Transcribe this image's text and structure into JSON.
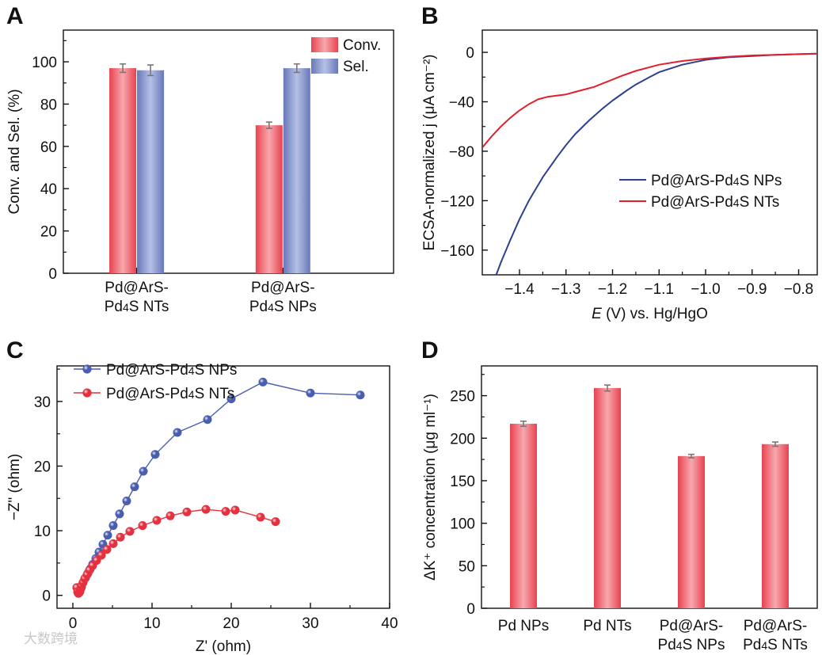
{
  "panels": {
    "a": {
      "letter": "A",
      "chart_data": {
        "type": "bar",
        "categories": [
          [
            "Pd@ArS-",
            "Pd4S NTs"
          ],
          [
            "Pd@ArS-",
            "Pd4S NPs"
          ]
        ],
        "series": [
          {
            "name": "Conv.",
            "values": [
              97,
              70
            ],
            "errors": [
              2,
              1.5
            ],
            "color": "#e8424f"
          },
          {
            "name": "Sel.",
            "values": [
              96,
              97
            ],
            "errors": [
              2.5,
              2
            ],
            "color": "#6878b8"
          }
        ],
        "xlabel": "",
        "ylabel": "Conv. and Sel. (%)",
        "ylim": [
          0,
          115
        ],
        "yticks": [
          0,
          20,
          40,
          60,
          80,
          100
        ],
        "legend": "top-right",
        "grid": false
      }
    },
    "b": {
      "letter": "B",
      "chart_data": {
        "type": "line",
        "xlabel_italic": "E",
        "xlabel_rest": " (V) vs. Hg/HgO",
        "ylabel": "ECSA-normalized j (μA cm⁻²)",
        "xlim": [
          -1.48,
          -0.76
        ],
        "ylim": [
          -180,
          18
        ],
        "xticks": [
          -1.4,
          -1.3,
          -1.2,
          -1.1,
          -1.0,
          -0.9,
          -0.8
        ],
        "xtick_labels": [
          "−1.4",
          "−1.3",
          "−1.2",
          "−1.1",
          "−1.0",
          "−0.9",
          "−0.8"
        ],
        "yticks": [
          0,
          -40,
          -80,
          -120,
          -160
        ],
        "ytick_labels": [
          "0",
          "−40",
          "−80",
          "−120",
          "−160"
        ],
        "legend": "lower-right",
        "grid": false,
        "series": [
          {
            "name": "Pd@ArS-Pd4S NPs",
            "color": "#2f3f8f",
            "x": [
              -1.45,
              -1.44,
              -1.42,
              -1.4,
              -1.38,
              -1.35,
              -1.32,
              -1.3,
              -1.28,
              -1.25,
              -1.22,
              -1.2,
              -1.17,
              -1.15,
              -1.12,
              -1.1,
              -1.05,
              -1.0,
              -0.95,
              -0.9,
              -0.85,
              -0.8,
              -0.76
            ],
            "y": [
              -180,
              -170,
              -152,
              -135,
              -120,
              -101,
              -85,
              -75,
              -66,
              -55,
              -45,
              -39,
              -31,
              -26,
              -20,
              -16,
              -10,
              -6,
              -4,
              -3,
              -2,
              -1.5,
              -1
            ]
          },
          {
            "name": "Pd@ArS-Pd4S NTs",
            "color": "#e0202c",
            "x": [
              -1.48,
              -1.46,
              -1.44,
              -1.42,
              -1.4,
              -1.38,
              -1.36,
              -1.34,
              -1.32,
              -1.3,
              -1.28,
              -1.26,
              -1.24,
              -1.22,
              -1.2,
              -1.18,
              -1.15,
              -1.12,
              -1.1,
              -1.05,
              -1.0,
              -0.95,
              -0.9,
              -0.85,
              -0.8,
              -0.76
            ],
            "y": [
              -77,
              -68,
              -60,
              -53,
              -47,
              -42,
              -38,
              -36,
              -35,
              -34,
              -32,
              -30,
              -28,
              -25,
              -22,
              -19,
              -15,
              -12,
              -10,
              -7,
              -5,
              -3.5,
              -2.5,
              -2,
              -1.5,
              -1
            ]
          }
        ]
      }
    },
    "c": {
      "letter": "C",
      "chart_data": {
        "type": "scatter",
        "xlabel": "Z' (ohm)",
        "ylabel": "−Z\" (ohm)",
        "xlim": [
          -2,
          40
        ],
        "ylim": [
          -2,
          35.5
        ],
        "xticks": [
          0,
          10,
          20,
          30,
          40
        ],
        "yticks": [
          0,
          10,
          20,
          30
        ],
        "legend": "top-left",
        "grid": false,
        "series": [
          {
            "name": "Pd@ArS-Pd4S NPs",
            "color": "#4a5eb0",
            "x": [
              0.5,
              0.7,
              0.9,
              1.1,
              1.3,
              1.6,
              1.9,
              2.2,
              2.5,
              2.9,
              3.3,
              3.8,
              4.4,
              5.1,
              5.9,
              6.8,
              7.8,
              8.9,
              10.4,
              13.2,
              17.0,
              20.0,
              24.0,
              30.0,
              36.3
            ],
            "y": [
              1.2,
              0.6,
              0.8,
              1.3,
              2.0,
              2.7,
              3.4,
              4.1,
              4.8,
              5.7,
              6.7,
              7.9,
              9.3,
              10.8,
              12.6,
              14.6,
              16.8,
              19.2,
              21.8,
              25.2,
              27.2,
              30.4,
              33.0,
              31.3,
              31.0
            ]
          },
          {
            "name": "Pd@ArS-Pd4S NTs",
            "color": "#e5303f",
            "x": [
              0.5,
              0.6,
              0.7,
              0.8,
              0.9,
              1.0,
              1.1,
              1.3,
              1.5,
              1.8,
              2.1,
              2.5,
              3.0,
              3.6,
              4.3,
              5.1,
              6.0,
              7.2,
              8.8,
              10.6,
              12.3,
              14.4,
              16.8,
              19.3,
              20.5,
              23.7,
              25.6
            ],
            "y": [
              1.2,
              0.5,
              0.3,
              0.4,
              0.6,
              1.0,
              1.5,
              2.0,
              2.6,
              3.2,
              3.9,
              4.6,
              5.4,
              6.2,
              7.1,
              8.0,
              9.0,
              9.9,
              10.8,
              11.6,
              12.3,
              12.9,
              13.3,
              13.0,
              13.2,
              12.1,
              11.4
            ]
          }
        ]
      }
    },
    "d": {
      "letter": "D",
      "chart_data": {
        "type": "bar",
        "categories": [
          [
            "Pd NPs"
          ],
          [
            "Pd NTs"
          ],
          [
            "Pd@ArS-",
            "Pd4S NPs"
          ],
          [
            "Pd@ArS-",
            "Pd4S NTs"
          ]
        ],
        "values": [
          217,
          259,
          179,
          193
        ],
        "errors": [
          3,
          3.5,
          2,
          2.5
        ],
        "color": "#e8424f",
        "xlabel": "",
        "ylabel": "ΔK⁺ concentration (μg ml⁻¹)",
        "ylim": [
          0,
          285
        ],
        "yticks": [
          0,
          50,
          100,
          150,
          200,
          250
        ],
        "grid": false
      }
    }
  },
  "watermark": "大数跨境"
}
